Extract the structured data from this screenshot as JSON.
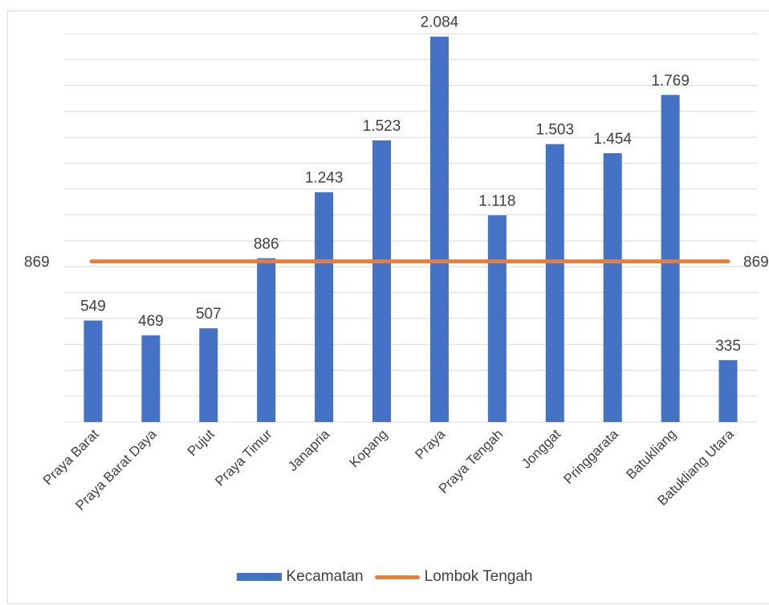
{
  "chart_data": {
    "type": "bar",
    "categories": [
      "Praya Barat",
      "Praya Barat Daya",
      "Pujut",
      "Praya Timur",
      "Janapria",
      "Kopang",
      "Praya",
      "Praya Tengah",
      "Jonggat",
      "Pringgarata",
      "Batukliang",
      "Batukliang Utara"
    ],
    "series": [
      {
        "name": "Kecamatan",
        "type": "bar",
        "color": "#4472c4",
        "values": [
          549,
          469,
          507,
          886,
          1243,
          1523,
          2084,
          1118,
          1503,
          1454,
          1769,
          335
        ],
        "labels": [
          "549",
          "469",
          "507",
          "886",
          "1.243",
          "1.523",
          "2.084",
          "1.118",
          "1.503",
          "1.454",
          "1.769",
          "335"
        ]
      },
      {
        "name": "Lombok Tengah",
        "type": "line",
        "color": "#ed7d31",
        "value": 869,
        "end_labels": [
          "869",
          "869"
        ]
      }
    ],
    "ylim": [
      0,
      2100
    ],
    "y_gridlines": 15,
    "grid": true,
    "legend": "bottom"
  }
}
